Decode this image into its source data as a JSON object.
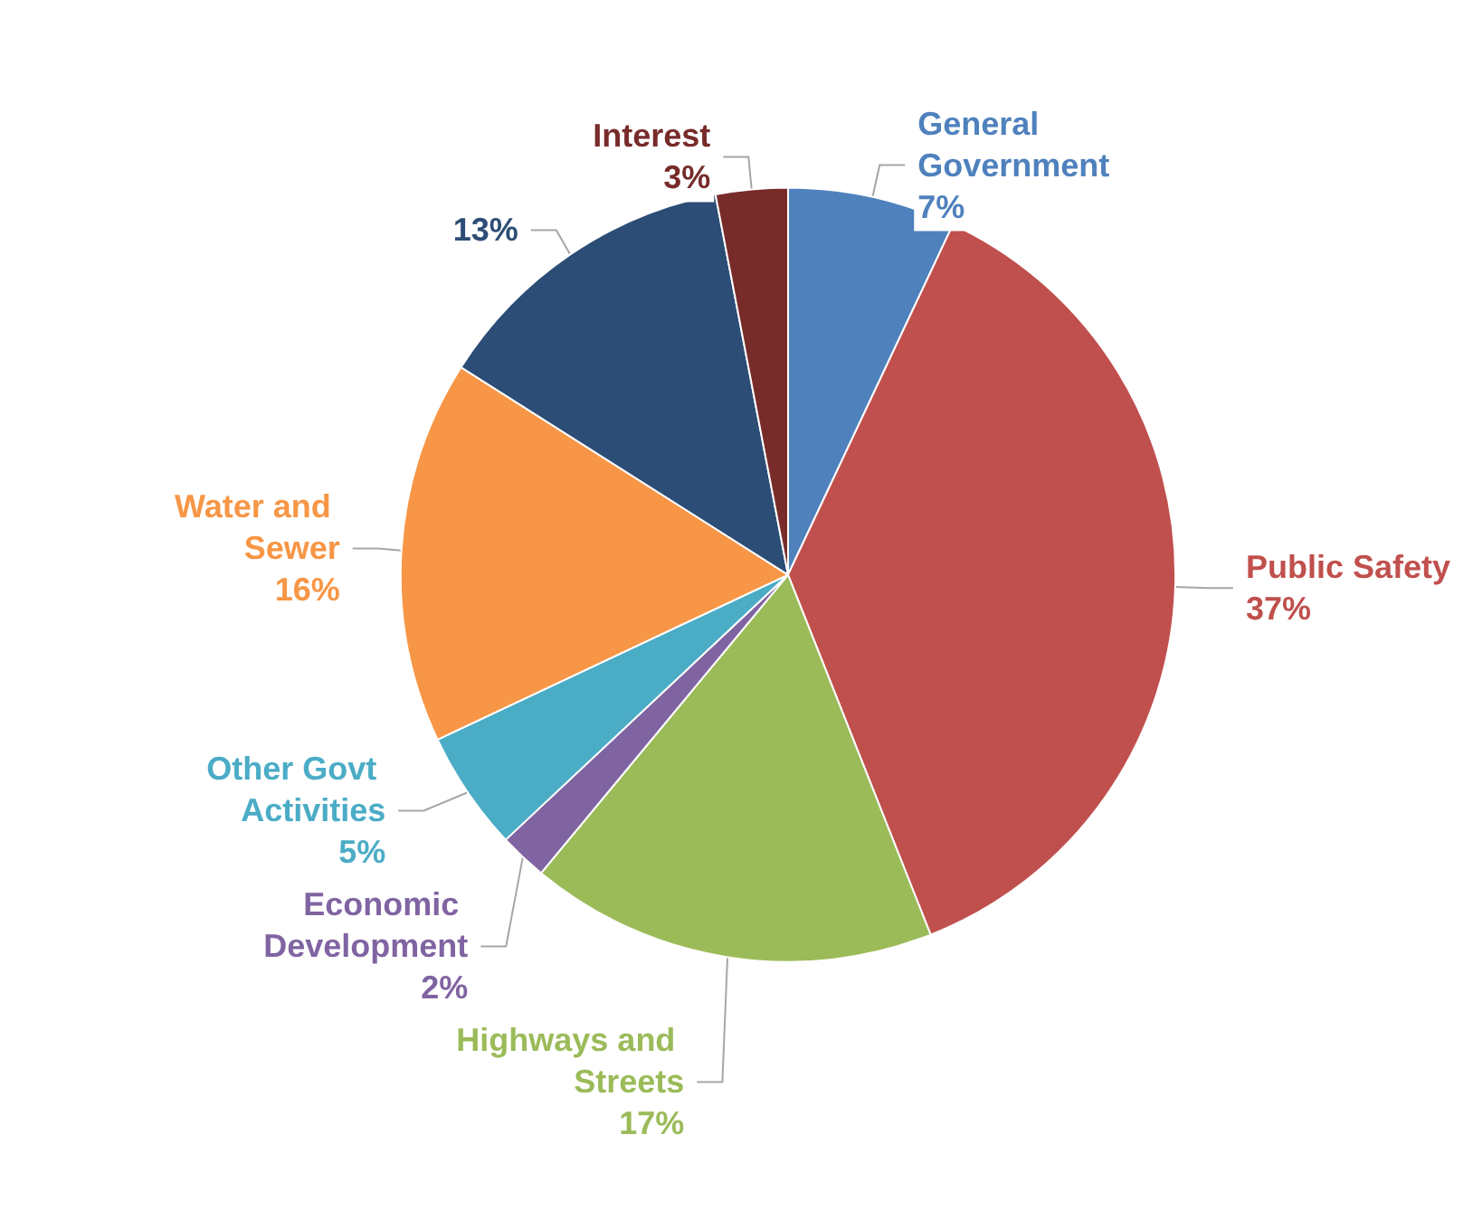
{
  "chart_data": {
    "type": "pie",
    "categories": [
      "General Government",
      "Public Safety",
      "Highways and Streets",
      "Economic Development",
      "Other Govt Activities",
      "Water and Sewer",
      null,
      "Interest"
    ],
    "values": [
      7,
      37,
      17,
      2,
      5,
      16,
      13,
      3
    ],
    "colors": [
      "#4f81bd",
      "#c0504d",
      "#9bbb59",
      "#8064a2",
      "#4bacc6",
      "#f79646",
      "#2c4d75",
      "#772c2a"
    ],
    "value_labels": [
      "7%",
      "37%",
      "17%",
      "2%",
      "5%",
      "16%",
      "13%",
      "3%"
    ],
    "legend": false
  }
}
